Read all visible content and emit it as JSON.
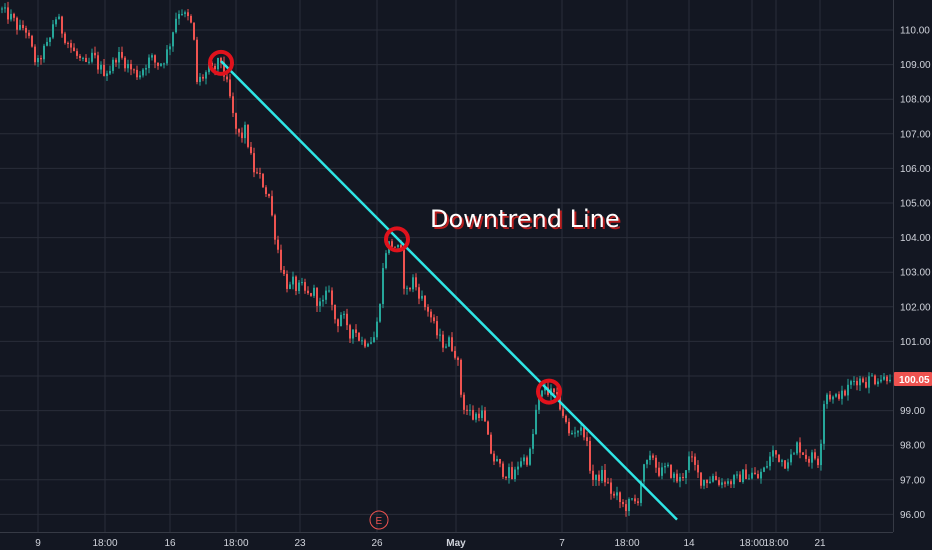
{
  "chart_data": {
    "type": "candlestick",
    "colors": {
      "background": "#131722",
      "grid": "#2a2e39",
      "up": "#26a69a",
      "down": "#ef5350",
      "trendline": "#2ee6e6",
      "marker": "#e0121c",
      "axis_text": "#d1d4dc"
    },
    "y_axis": {
      "position": "right",
      "ylim": [
        95.7,
        110.8
      ],
      "ticks": [
        "96.00",
        "97.00",
        "98.00",
        "99.00",
        "100.00",
        "101.00",
        "102.00",
        "103.00",
        "104.00",
        "105.00",
        "106.00",
        "107.00",
        "108.00",
        "109.00",
        "110.00"
      ]
    },
    "x_axis": {
      "ticks": [
        {
          "label": "9",
          "bold": false
        },
        {
          "label": "18:00",
          "bold": false
        },
        {
          "label": "16",
          "bold": false
        },
        {
          "label": "18:00",
          "bold": false
        },
        {
          "label": "23",
          "bold": false
        },
        {
          "label": "26",
          "bold": false
        },
        {
          "label": "May",
          "bold": true
        },
        {
          "label": "7",
          "bold": false
        },
        {
          "label": "18:00",
          "bold": false
        },
        {
          "label": "14",
          "bold": false
        },
        {
          "label": "18:00",
          "bold": false
        },
        {
          "label": "18:00",
          "bold": false
        },
        {
          "label": "21",
          "bold": false
        }
      ]
    },
    "price_path": [
      [
        0,
        110.6
      ],
      [
        3,
        110.5
      ],
      [
        8,
        110.4
      ],
      [
        12,
        110.3
      ],
      [
        18,
        110.0
      ],
      [
        24,
        110.1
      ],
      [
        30,
        109.5
      ],
      [
        36,
        108.95
      ],
      [
        42,
        109.4
      ],
      [
        48,
        109.6
      ],
      [
        52,
        110.2
      ],
      [
        56,
        110.4
      ],
      [
        62,
        109.9
      ],
      [
        68,
        109.6
      ],
      [
        74,
        109.3
      ],
      [
        80,
        109.1
      ],
      [
        86,
        108.9
      ],
      [
        92,
        109.3
      ],
      [
        98,
        108.9
      ],
      [
        104,
        108.8
      ],
      [
        110,
        108.9
      ],
      [
        116,
        109.3
      ],
      [
        120,
        109.2
      ],
      [
        126,
        109.0
      ],
      [
        132,
        108.8
      ],
      [
        138,
        108.7
      ],
      [
        144,
        109.0
      ],
      [
        150,
        109.2
      ],
      [
        156,
        109.0
      ],
      [
        162,
        109.1
      ],
      [
        168,
        109.5
      ],
      [
        172,
        110.0
      ],
      [
        176,
        110.5
      ],
      [
        180,
        110.6
      ],
      [
        184,
        110.4
      ],
      [
        188,
        110.3
      ],
      [
        192,
        110.0
      ],
      [
        196,
        108.5
      ],
      [
        200,
        108.6
      ],
      [
        204,
        108.7
      ],
      [
        208,
        108.9
      ],
      [
        212,
        108.8
      ],
      [
        216,
        109.0
      ],
      [
        220,
        109.1
      ],
      [
        224,
        108.6
      ],
      [
        228,
        108.2
      ],
      [
        232,
        107.5
      ],
      [
        236,
        107.0
      ],
      [
        240,
        106.9
      ],
      [
        244,
        107.1
      ],
      [
        248,
        106.6
      ],
      [
        252,
        106.0
      ],
      [
        256,
        105.8
      ],
      [
        260,
        105.7
      ],
      [
        264,
        105.4
      ],
      [
        268,
        105.2
      ],
      [
        272,
        104.4
      ],
      [
        276,
        103.8
      ],
      [
        280,
        103.2
      ],
      [
        284,
        102.8
      ],
      [
        288,
        102.5
      ],
      [
        292,
        102.7
      ],
      [
        296,
        102.5
      ],
      [
        300,
        102.6
      ],
      [
        304,
        102.4
      ],
      [
        308,
        102.3
      ],
      [
        312,
        102.5
      ],
      [
        316,
        102.2
      ],
      [
        320,
        102.0
      ],
      [
        324,
        102.2
      ],
      [
        328,
        102.6
      ],
      [
        332,
        101.8
      ],
      [
        336,
        101.5
      ],
      [
        340,
        101.8
      ],
      [
        344,
        101.6
      ],
      [
        348,
        101.0
      ],
      [
        352,
        101.5
      ],
      [
        356,
        101.2
      ],
      [
        360,
        101.0
      ],
      [
        364,
        101.0
      ],
      [
        368,
        101.1
      ],
      [
        372,
        101.0
      ],
      [
        376,
        101.5
      ],
      [
        380,
        102.5
      ],
      [
        384,
        103.6
      ],
      [
        388,
        103.8
      ],
      [
        392,
        103.8
      ],
      [
        396,
        103.7
      ],
      [
        400,
        103.5
      ],
      [
        404,
        102.4
      ],
      [
        408,
        102.5
      ],
      [
        412,
        102.8
      ],
      [
        416,
        102.5
      ],
      [
        420,
        102.3
      ],
      [
        424,
        102.0
      ],
      [
        428,
        101.9
      ],
      [
        432,
        101.5
      ],
      [
        436,
        101.2
      ],
      [
        440,
        101.0
      ],
      [
        444,
        100.9
      ],
      [
        448,
        101.0
      ],
      [
        452,
        100.8
      ],
      [
        456,
        100.6
      ],
      [
        460,
        99.5
      ],
      [
        464,
        99.0
      ],
      [
        468,
        99.0
      ],
      [
        472,
        98.8
      ],
      [
        476,
        98.9
      ],
      [
        480,
        99.0
      ],
      [
        484,
        98.6
      ],
      [
        488,
        98.0
      ],
      [
        492,
        97.6
      ],
      [
        496,
        97.5
      ],
      [
        500,
        97.3
      ],
      [
        504,
        97.2
      ],
      [
        508,
        97.2
      ],
      [
        512,
        97.0
      ],
      [
        516,
        97.4
      ],
      [
        520,
        97.6
      ],
      [
        524,
        97.6
      ],
      [
        528,
        97.6
      ],
      [
        532,
        98.3
      ],
      [
        536,
        99.2
      ],
      [
        540,
        99.4
      ],
      [
        544,
        99.7
      ],
      [
        548,
        99.5
      ],
      [
        552,
        99.5
      ],
      [
        556,
        99.3
      ],
      [
        560,
        99.1
      ],
      [
        564,
        98.7
      ],
      [
        568,
        98.3
      ],
      [
        572,
        98.4
      ],
      [
        576,
        98.5
      ],
      [
        580,
        98.4
      ],
      [
        584,
        98.4
      ],
      [
        588,
        97.5
      ],
      [
        592,
        97.0
      ],
      [
        596,
        97.0
      ],
      [
        600,
        97.2
      ],
      [
        604,
        97.0
      ],
      [
        608,
        96.8
      ],
      [
        612,
        96.5
      ],
      [
        616,
        96.5
      ],
      [
        620,
        96.3
      ],
      [
        624,
        96.2
      ],
      [
        628,
        96.3
      ],
      [
        632,
        96.4
      ],
      [
        636,
        96.3
      ],
      [
        640,
        97.0
      ],
      [
        644,
        97.4
      ],
      [
        648,
        97.5
      ],
      [
        652,
        97.7
      ],
      [
        656,
        97.3
      ],
      [
        660,
        97.2
      ],
      [
        664,
        97.3
      ],
      [
        668,
        97.3
      ],
      [
        672,
        97.1
      ],
      [
        676,
        97.0
      ],
      [
        680,
        97.0
      ],
      [
        684,
        97.3
      ],
      [
        688,
        97.6
      ],
      [
        692,
        97.5
      ],
      [
        696,
        97.2
      ],
      [
        700,
        97.0
      ],
      [
        704,
        97.0
      ],
      [
        708,
        97.0
      ],
      [
        712,
        97.1
      ],
      [
        716,
        97.0
      ],
      [
        720,
        96.9
      ],
      [
        724,
        97.0
      ],
      [
        728,
        96.9
      ],
      [
        732,
        97.0
      ],
      [
        736,
        97.0
      ],
      [
        740,
        97.1
      ],
      [
        744,
        97.2
      ],
      [
        748,
        97.1
      ],
      [
        752,
        97.2
      ],
      [
        756,
        97.0
      ],
      [
        760,
        97.2
      ],
      [
        764,
        97.3
      ],
      [
        768,
        97.6
      ],
      [
        772,
        97.8
      ],
      [
        776,
        97.7
      ],
      [
        780,
        97.6
      ],
      [
        784,
        97.5
      ],
      [
        788,
        97.7
      ],
      [
        792,
        97.6
      ],
      [
        796,
        98.0
      ],
      [
        800,
        97.9
      ],
      [
        804,
        97.7
      ],
      [
        808,
        97.6
      ],
      [
        812,
        97.7
      ],
      [
        816,
        97.6
      ],
      [
        818,
        97.5
      ],
      [
        820,
        98.2
      ],
      [
        822,
        99.2
      ],
      [
        826,
        99.5
      ],
      [
        830,
        99.4
      ],
      [
        834,
        99.3
      ],
      [
        838,
        99.5
      ],
      [
        842,
        99.4
      ],
      [
        846,
        99.6
      ],
      [
        850,
        99.8
      ],
      [
        854,
        99.9
      ],
      [
        858,
        99.9
      ],
      [
        862,
        99.9
      ],
      [
        866,
        99.8
      ],
      [
        870,
        100.0
      ],
      [
        874,
        99.9
      ],
      [
        878,
        100.0
      ],
      [
        882,
        99.9
      ],
      [
        886,
        100.0
      ],
      [
        890,
        100.05
      ]
    ],
    "trendline": {
      "from": [
        221,
        109.1
      ],
      "to": [
        677,
        95.85
      ]
    },
    "touch_points": [
      [
        221,
        109.05
      ],
      [
        397,
        103.95
      ],
      [
        549,
        99.55
      ]
    ],
    "annotation": "Downtrend Line",
    "last_price": "100.05",
    "event_marker": "E"
  }
}
